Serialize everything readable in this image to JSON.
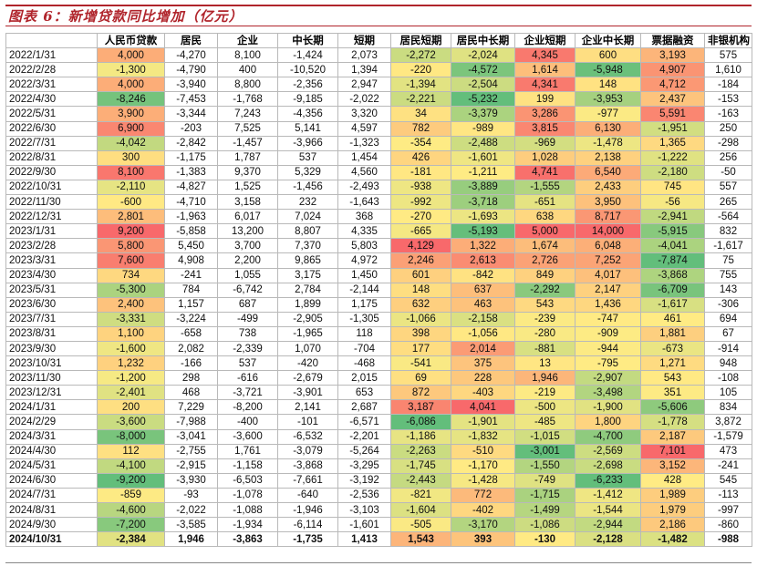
{
  "title": "图表 6：新增贷款同比增加（亿元）",
  "table": {
    "headers": [
      "",
      "人民币贷款",
      "居民",
      "企业",
      "中长期",
      "短期",
      "居民短期",
      "居民中长期",
      "企业短期",
      "企业中长期",
      "票据融资",
      "非银机构"
    ],
    "rows": [
      [
        "2022/1/31",
        "4,000",
        "-4,270",
        "8,100",
        "-1,424",
        "2,073",
        "-2,272",
        "-2,024",
        "4,345",
        "600",
        "3,193",
        "575"
      ],
      [
        "2022/2/28",
        "-1,300",
        "-4,790",
        "400",
        "-10,520",
        "1,394",
        "-220",
        "-4,572",
        "1,614",
        "-5,948",
        "4,907",
        "1,610"
      ],
      [
        "2022/3/31",
        "4,000",
        "-3,940",
        "8,800",
        "-2,356",
        "2,947",
        "-1,394",
        "-2,504",
        "4,341",
        "148",
        "4,712",
        "-184"
      ],
      [
        "2022/4/30",
        "-8,246",
        "-7,453",
        "-1,768",
        "-9,185",
        "-2,022",
        "-2,221",
        "-5,232",
        "199",
        "-3,953",
        "2,437",
        "-153"
      ],
      [
        "2022/5/31",
        "3,900",
        "-3,344",
        "7,243",
        "-4,356",
        "3,320",
        "34",
        "-3,379",
        "3,286",
        "-977",
        "5,591",
        "-163"
      ],
      [
        "2022/6/30",
        "6,900",
        "-203",
        "7,525",
        "5,141",
        "4,597",
        "782",
        "-989",
        "3,815",
        "6,130",
        "-1,951",
        "250"
      ],
      [
        "2022/7/31",
        "-4,042",
        "-2,842",
        "-1,457",
        "-3,966",
        "-1,323",
        "-354",
        "-2,488",
        "-969",
        "-1,478",
        "1,365",
        "-298"
      ],
      [
        "2022/8/31",
        "300",
        "-1,175",
        "1,787",
        "537",
        "1,454",
        "426",
        "-1,601",
        "1,028",
        "2,138",
        "-1,222",
        "256"
      ],
      [
        "2022/9/30",
        "8,100",
        "-1,383",
        "9,370",
        "5,329",
        "4,560",
        "-181",
        "-1,211",
        "4,741",
        "6,540",
        "-2,180",
        "-50"
      ],
      [
        "2022/10/31",
        "-2,110",
        "-4,827",
        "1,525",
        "-1,456",
        "-2,493",
        "-938",
        "-3,889",
        "-1,555",
        "2,433",
        "745",
        "557"
      ],
      [
        "2022/11/30",
        "-600",
        "-4,710",
        "3,158",
        "232",
        "-1,643",
        "-992",
        "-3,718",
        "-651",
        "3,950",
        "-56",
        "265"
      ],
      [
        "2022/12/31",
        "2,801",
        "-1,963",
        "6,017",
        "7,024",
        "368",
        "-270",
        "-1,693",
        "638",
        "8,717",
        "-2,941",
        "-564"
      ],
      [
        "2023/1/31",
        "9,200",
        "-5,858",
        "13,200",
        "8,807",
        "4,335",
        "-665",
        "-5,193",
        "5,000",
        "14,000",
        "-5,915",
        "832"
      ],
      [
        "2023/2/28",
        "5,800",
        "5,450",
        "3,700",
        "7,370",
        "5,803",
        "4,129",
        "1,322",
        "1,674",
        "6,048",
        "-4,041",
        "-1,617"
      ],
      [
        "2023/3/31",
        "7,600",
        "4,908",
        "2,200",
        "9,865",
        "4,972",
        "2,246",
        "2,613",
        "2,726",
        "7,252",
        "-7,874",
        "75"
      ],
      [
        "2023/4/30",
        "734",
        "-241",
        "1,055",
        "3,175",
        "1,450",
        "601",
        "-842",
        "849",
        "4,017",
        "-3,868",
        "755"
      ],
      [
        "2023/5/31",
        "-5,300",
        "784",
        "-6,742",
        "2,784",
        "-2,144",
        "148",
        "637",
        "-2,292",
        "2,147",
        "-6,709",
        "143"
      ],
      [
        "2023/6/30",
        "2,400",
        "1,157",
        "687",
        "1,899",
        "1,175",
        "632",
        "463",
        "543",
        "1,436",
        "-1,617",
        "-306"
      ],
      [
        "2023/7/31",
        "-3,331",
        "-3,224",
        "-499",
        "-2,905",
        "-1,305",
        "-1,066",
        "-2,158",
        "-239",
        "-747",
        "461",
        "694"
      ],
      [
        "2023/8/31",
        "1,100",
        "-658",
        "738",
        "-1,965",
        "118",
        "398",
        "-1,056",
        "-280",
        "-909",
        "1,881",
        "67"
      ],
      [
        "2023/9/30",
        "-1,600",
        "2,082",
        "-2,339",
        "1,070",
        "-704",
        "177",
        "2,014",
        "-881",
        "-944",
        "-673",
        "-914"
      ],
      [
        "2023/10/31",
        "1,232",
        "-166",
        "537",
        "-420",
        "-468",
        "-541",
        "375",
        "13",
        "-795",
        "1,271",
        "948"
      ],
      [
        "2023/11/30",
        "-1,200",
        "298",
        "-616",
        "-2,679",
        "2,015",
        "69",
        "228",
        "1,946",
        "-2,907",
        "543",
        "-108"
      ],
      [
        "2023/12/31",
        "-2,401",
        "468",
        "-3,721",
        "-3,901",
        "653",
        "872",
        "-403",
        "-219",
        "-3,498",
        "351",
        "105"
      ],
      [
        "2024/1/31",
        "200",
        "7,229",
        "-8,200",
        "2,141",
        "2,687",
        "3,187",
        "4,041",
        "-500",
        "-1,900",
        "-5,606",
        "834"
      ],
      [
        "2024/2/29",
        "-3,600",
        "-7,988",
        "-400",
        "-101",
        "-6,571",
        "-6,086",
        "-1,901",
        "-485",
        "1,800",
        "-1,778",
        "3,872"
      ],
      [
        "2024/3/31",
        "-8,000",
        "-3,041",
        "-3,600",
        "-6,532",
        "-2,201",
        "-1,186",
        "-1,832",
        "-1,015",
        "-4,700",
        "2,187",
        "-1,579"
      ],
      [
        "2024/4/30",
        "112",
        "-2,755",
        "1,761",
        "-3,079",
        "-5,264",
        "-2,263",
        "-510",
        "-3,001",
        "-2,569",
        "7,101",
        "473"
      ],
      [
        "2024/5/31",
        "-4,100",
        "-2,915",
        "-1,158",
        "-3,868",
        "-3,295",
        "-1,745",
        "-1,170",
        "-1,550",
        "-2,698",
        "3,152",
        "-241"
      ],
      [
        "2024/6/30",
        "-9,200",
        "-3,930",
        "-6,503",
        "-7,661",
        "-3,192",
        "-2,443",
        "-1,428",
        "-749",
        "-6,233",
        "428",
        "545"
      ],
      [
        "2024/7/31",
        "-859",
        "-93",
        "-1,078",
        "-640",
        "-2,536",
        "-821",
        "772",
        "-1,715",
        "-1,412",
        "1,989",
        "-113"
      ],
      [
        "2024/8/31",
        "-4,600",
        "-2,022",
        "-1,088",
        "-1,946",
        "-3,103",
        "-1,604",
        "-402",
        "-1,499",
        "-1,544",
        "1,979",
        "-997"
      ],
      [
        "2024/9/30",
        "-7,200",
        "-3,585",
        "-1,934",
        "-6,114",
        "-1,601",
        "-505",
        "-3,170",
        "-1,086",
        "-2,944",
        "2,186",
        "-860"
      ],
      [
        "2024/10/31",
        "-2,384",
        "1,946",
        "-3,863",
        "-1,735",
        "1,413",
        "1,543",
        "393",
        "-130",
        "-2,128",
        "-1,482",
        "-988"
      ]
    ]
  },
  "heatmap_columns": [
    1,
    6,
    7,
    8,
    9,
    10
  ],
  "colors": {
    "accent": "#b0242b",
    "high": "#f8696b",
    "mid": "#ffeb84",
    "low": "#63be7b"
  }
}
